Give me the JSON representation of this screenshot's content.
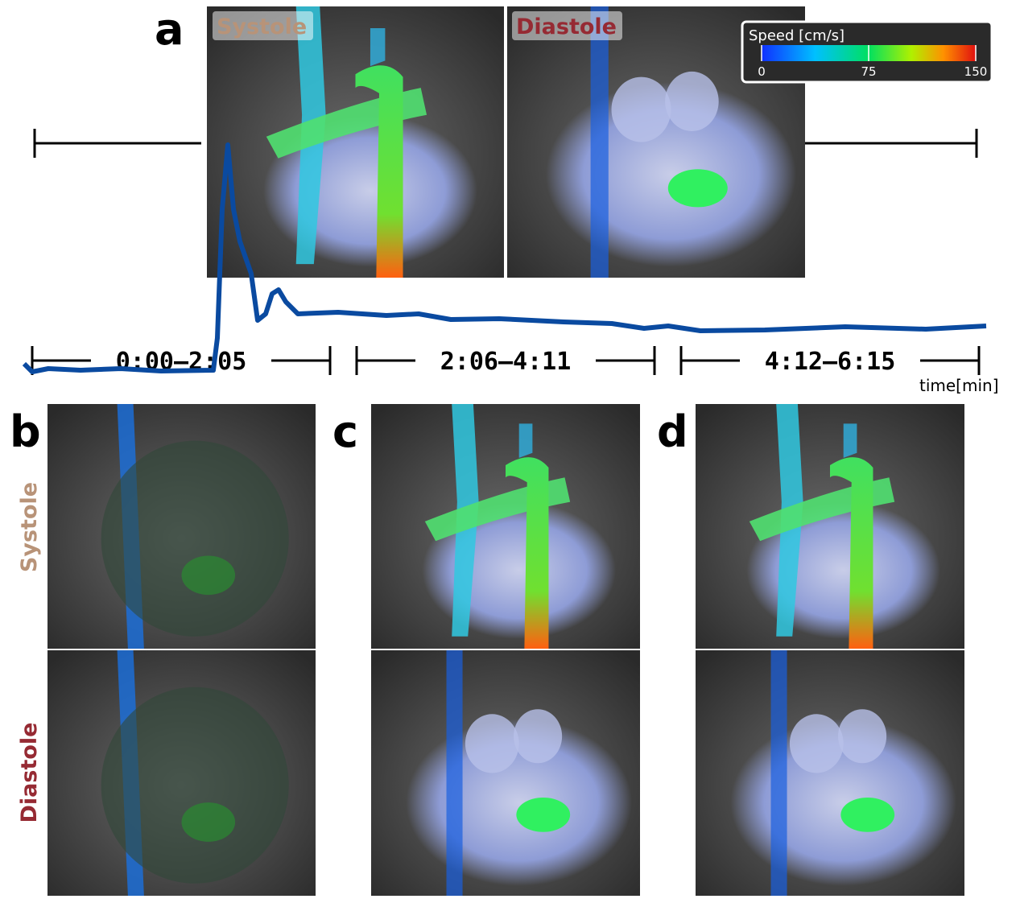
{
  "panel_a": {
    "label": "a",
    "systole": "Systole",
    "diastole": "Diastole",
    "colorbar": {
      "title": "Speed [cm/s]",
      "lim": [
        0,
        150
      ],
      "ticks": [
        0,
        75,
        150
      ]
    },
    "time_ranges": [
      "0:00–2:05",
      "2:06–4:11",
      "4:12–6:15"
    ],
    "time_axis": "time[min]"
  },
  "panel_b": {
    "label": "b"
  },
  "panel_c": {
    "label": "c"
  },
  "panel_d": {
    "label": "d"
  },
  "row_labels": {
    "systole": "Systole",
    "diastole": "Diastole"
  }
}
